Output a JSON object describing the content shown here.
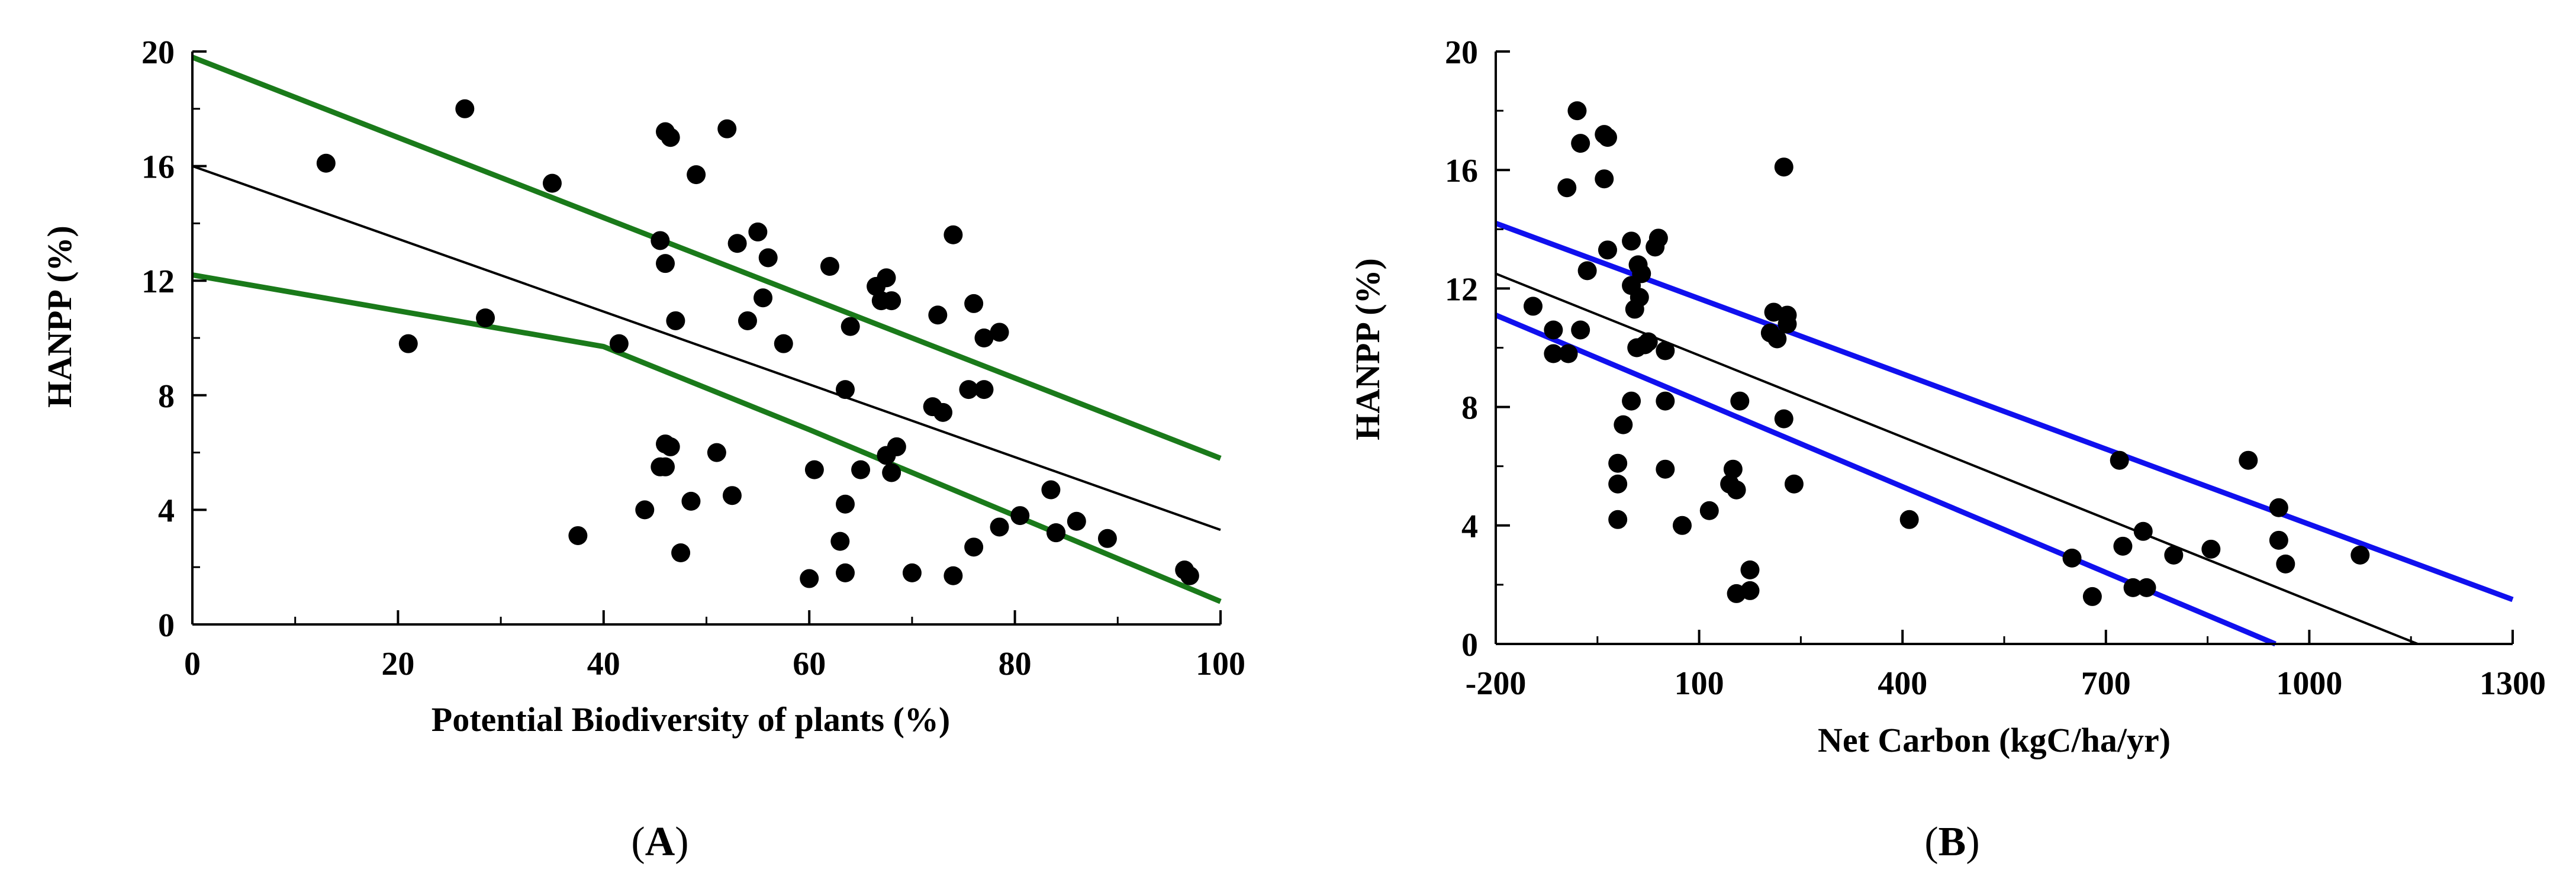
{
  "chart_data": [
    {
      "type": "scatter",
      "panel_label": "A",
      "panel_label_open": "(",
      "panel_label_close": ")",
      "title": "",
      "xlabel": "Potential Biodiversity of plants (%)",
      "ylabel": "HANPP (%)",
      "xlim": [
        0,
        100
      ],
      "ylim": [
        0,
        20
      ],
      "xticks": [
        0,
        20,
        40,
        60,
        80,
        100
      ],
      "yticks": [
        0,
        4,
        8,
        12,
        16,
        20
      ],
      "grid": false,
      "points": [
        [
          13,
          16.1
        ],
        [
          21,
          9.8
        ],
        [
          26.5,
          18
        ],
        [
          28.5,
          10.7
        ],
        [
          35,
          15.4
        ],
        [
          37.5,
          3.1
        ],
        [
          41.5,
          9.8
        ],
        [
          44,
          4
        ],
        [
          45.5,
          13.4
        ],
        [
          46,
          12.6
        ],
        [
          46,
          6.3
        ],
        [
          45.5,
          5.5
        ],
        [
          46.5,
          6.2
        ],
        [
          46,
          5.5
        ],
        [
          46,
          17.2
        ],
        [
          46.5,
          17
        ],
        [
          47,
          10.6
        ],
        [
          47.5,
          2.5
        ],
        [
          48.5,
          4.3
        ],
        [
          49,
          15.7
        ],
        [
          51,
          6
        ],
        [
          52,
          17.3
        ],
        [
          52.5,
          4.5
        ],
        [
          53,
          13.3
        ],
        [
          54,
          10.6
        ],
        [
          55,
          13.7
        ],
        [
          55.5,
          11.4
        ],
        [
          56,
          12.8
        ],
        [
          57.5,
          9.8
        ],
        [
          60,
          1.6
        ],
        [
          60.5,
          5.4
        ],
        [
          62,
          12.5
        ],
        [
          63,
          2.9
        ],
        [
          63.5,
          4.2
        ],
        [
          63.5,
          8.2
        ],
        [
          63.5,
          1.8
        ],
        [
          64,
          10.4
        ],
        [
          65,
          5.4
        ],
        [
          66.5,
          11.8
        ],
        [
          67,
          11.3
        ],
        [
          67.5,
          12.1
        ],
        [
          67.5,
          5.9
        ],
        [
          68,
          11.3
        ],
        [
          68,
          5.3
        ],
        [
          68.5,
          6.2
        ],
        [
          70,
          1.8
        ],
        [
          72,
          7.6
        ],
        [
          72.5,
          10.8
        ],
        [
          73,
          7.4
        ],
        [
          74,
          13.6
        ],
        [
          74,
          1.7
        ],
        [
          75.5,
          8.2
        ],
        [
          76,
          2.7
        ],
        [
          76,
          11.2
        ],
        [
          77,
          8.2
        ],
        [
          77,
          10
        ],
        [
          78.5,
          10.2
        ],
        [
          78.5,
          3.4
        ],
        [
          80.5,
          3.8
        ],
        [
          83.5,
          4.7
        ],
        [
          84,
          3.2
        ],
        [
          84,
          3.2
        ],
        [
          86,
          3.6
        ],
        [
          89,
          3
        ],
        [
          96.5,
          1.9
        ],
        [
          97,
          1.7
        ]
      ],
      "series": [
        {
          "name": "fit",
          "color": "#000000",
          "x": [
            0,
            100
          ],
          "y": [
            16,
            3.3
          ]
        },
        {
          "name": "upper-bound",
          "color": "#1a7a1a",
          "x": [
            0,
            100
          ],
          "y": [
            19.8,
            5.8
          ]
        },
        {
          "name": "lower-bound",
          "color": "#1a7a1a",
          "x": [
            0,
            40,
            60,
            100
          ],
          "y": [
            12.2,
            9.7,
            6.8,
            0.8
          ]
        }
      ]
    },
    {
      "type": "scatter",
      "panel_label": "B",
      "panel_label_open": "(",
      "panel_label_close": ")",
      "title": "",
      "xlabel": "Net Carbon (kgC/ha/yr)",
      "ylabel": "HANPP (%)",
      "xlim": [
        -200,
        1300
      ],
      "ylim": [
        0,
        20
      ],
      "xticks": [
        -200,
        100,
        400,
        700,
        1000,
        1300
      ],
      "yticks": [
        0,
        4,
        8,
        12,
        16,
        20
      ],
      "grid": false,
      "points": [
        [
          -145,
          11.4
        ],
        [
          -115,
          10.6
        ],
        [
          -115,
          9.8
        ],
        [
          -95,
          15.4
        ],
        [
          -93,
          9.8
        ],
        [
          -80,
          18
        ],
        [
          -75,
          16.9
        ],
        [
          -75,
          10.6
        ],
        [
          -65,
          12.6
        ],
        [
          -40,
          17.2
        ],
        [
          -35,
          17.1
        ],
        [
          -40,
          15.7
        ],
        [
          -35,
          13.3
        ],
        [
          -20,
          6.1
        ],
        [
          -20,
          5.4
        ],
        [
          -20,
          4.2
        ],
        [
          -12,
          7.4
        ],
        [
          0,
          12.1
        ],
        [
          0,
          13.6
        ],
        [
          0,
          8.2
        ],
        [
          5,
          11.3
        ],
        [
          8,
          10
        ],
        [
          10,
          12.8
        ],
        [
          12,
          11.7
        ],
        [
          15,
          12.5
        ],
        [
          20,
          10.1
        ],
        [
          25,
          10.2
        ],
        [
          35,
          13.4
        ],
        [
          40,
          13.7
        ],
        [
          50,
          9.9
        ],
        [
          50,
          5.9
        ],
        [
          50,
          8.2
        ],
        [
          75,
          4
        ],
        [
          115,
          4.5
        ],
        [
          145,
          5.4
        ],
        [
          150,
          5.9
        ],
        [
          155,
          1.7
        ],
        [
          160,
          8.2
        ],
        [
          155,
          5.2
        ],
        [
          175,
          2.5
        ],
        [
          175,
          1.8
        ],
        [
          205,
          10.5
        ],
        [
          210,
          11.2
        ],
        [
          215,
          10.3
        ],
        [
          225,
          16.1
        ],
        [
          225,
          7.6
        ],
        [
          230,
          11.1
        ],
        [
          230,
          10.8
        ],
        [
          240,
          5.4
        ],
        [
          410,
          4.2
        ],
        [
          650,
          2.9
        ],
        [
          680,
          1.6
        ],
        [
          720,
          6.2
        ],
        [
          725,
          3.3
        ],
        [
          740,
          1.9
        ],
        [
          755,
          3.8
        ],
        [
          760,
          1.9
        ],
        [
          800,
          3
        ],
        [
          855,
          3.2
        ],
        [
          910,
          6.2
        ],
        [
          955,
          4.6
        ],
        [
          955,
          3.5
        ],
        [
          965,
          2.7
        ],
        [
          1075,
          3
        ]
      ],
      "series": [
        {
          "name": "fit",
          "color": "#000000",
          "x": [
            -200,
            1160
          ],
          "y": [
            12.5,
            0
          ]
        },
        {
          "name": "upper-bound",
          "color": "#1010ee",
          "x": [
            -200,
            1300
          ],
          "y": [
            14.2,
            1.5
          ]
        },
        {
          "name": "lower-bound",
          "color": "#1010ee",
          "x": [
            -200,
            950
          ],
          "y": [
            11.1,
            0
          ]
        }
      ]
    }
  ]
}
